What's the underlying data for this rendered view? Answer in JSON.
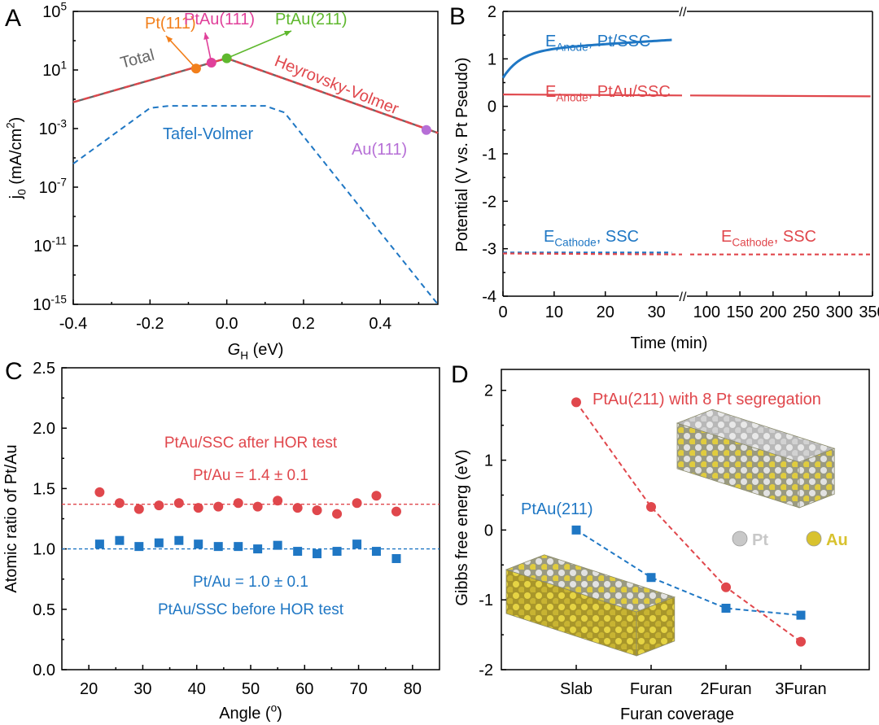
{
  "colors": {
    "blue": "#1f77c4",
    "red": "#e0474c",
    "gray": "#666666",
    "orange": "#f27f1b",
    "pink": "#e0409a",
    "green": "#5fb82e",
    "purple": "#b66fd6",
    "axis": "#000000"
  },
  "chart_data": [
    {
      "panel": "A",
      "type": "line",
      "panel_label": "A",
      "xlabel_main": "G",
      "xlabel_sub": "H",
      "xlabel_unit": " (eV)",
      "ylabel_main": "j",
      "ylabel_sub": "0",
      "ylabel_unit": " (mA/cm",
      "ylabel_sup": "2",
      "ylabel_tail": ")",
      "xlim": [
        -0.4,
        0.55
      ],
      "y_scale": "log",
      "ylim": [
        "1e-15",
        "1e5"
      ],
      "x_ticks": [
        "-0.4",
        "-0.2",
        "0.0",
        "0.2",
        "0.4"
      ],
      "y_ticks": [
        {
          "base": "10",
          "exp": "5"
        },
        {
          "base": "10",
          "exp": "1"
        },
        {
          "base": "10",
          "exp": "-3"
        },
        {
          "base": "10",
          "exp": "-7"
        },
        {
          "base": "10",
          "exp": "-11"
        },
        {
          "base": "10",
          "exp": "-15"
        }
      ],
      "series": [
        {
          "name": "Total",
          "points": [
            [
              -0.4,
              -1.2
            ],
            [
              0.0,
              1.8
            ],
            [
              0.55,
              -3.3
            ]
          ]
        },
        {
          "name": "Tafel-Volmer",
          "points": [
            [
              -0.4,
              -5.4
            ],
            [
              -0.2,
              -1.6
            ],
            [
              -0.15,
              -1.45
            ],
            [
              0.1,
              -1.45
            ],
            [
              0.15,
              -1.9
            ],
            [
              0.55,
              -15.0
            ]
          ]
        },
        {
          "name": "Heyrovsky-Volmer",
          "points": [
            [
              0.0,
              1.8
            ],
            [
              0.55,
              -3.3
            ]
          ]
        }
      ],
      "points": [
        {
          "name": "Pt(111)",
          "x": -0.08,
          "y": 1.1
        },
        {
          "name": "PtAu(111)",
          "x": -0.04,
          "y": 1.5
        },
        {
          "name": "PtAu(211)",
          "x": 0.0,
          "y": 1.8
        },
        {
          "name": "Au(111)",
          "x": 0.52,
          "y": -3.1
        }
      ]
    },
    {
      "panel": "B",
      "type": "line",
      "panel_label": "B",
      "xlabel": "Time (min)",
      "ylabel": "Potential (V vs. Pt Pseudo)",
      "x_ticks_left": [
        "0",
        "10",
        "20",
        "30"
      ],
      "x_ticks_right": [
        "100",
        "150",
        "200",
        "250",
        "300",
        "350"
      ],
      "x_break": "//",
      "ylim": [
        -4,
        2
      ],
      "y_ticks": [
        "2",
        "1",
        "0",
        "-1",
        "-2",
        "-3",
        "-4"
      ],
      "series": [
        {
          "name": "E_Anode, Pt/SSC",
          "label_main": "E",
          "label_sub": "Anode",
          "label_tail": ", Pt/SSC",
          "segments": "left",
          "y_start": 0.6,
          "y_end": 1.4
        },
        {
          "name": "E_Anode, PtAu/SSC",
          "label_main": "E",
          "label_sub": "Anode",
          "label_tail": ", PtAu/SSC",
          "segments": "both",
          "y": 0.25
        },
        {
          "name": "E_Cathode, SSC (blue)",
          "label_main": "E",
          "label_sub": "Cathode",
          "label_tail": ", SSC",
          "segments": "left",
          "y": -3.08
        },
        {
          "name": "E_Cathode, SSC (red)",
          "label_main": "E",
          "label_sub": "Cathode",
          "label_tail": ", SSC",
          "segments": "both",
          "y": -3.1
        }
      ]
    },
    {
      "panel": "C",
      "type": "scatter",
      "panel_label": "C",
      "xlabel_main": "Angle (",
      "xlabel_sup": "o",
      "xlabel_tail": ")",
      "ylabel": "Atomic ratio of Pt/Au",
      "xlim": [
        15,
        85
      ],
      "ylim": [
        0.0,
        2.5
      ],
      "x_ticks": [
        "20",
        "30",
        "40",
        "50",
        "60",
        "70",
        "80"
      ],
      "y_ticks": [
        "0.0",
        "0.5",
        "1.0",
        "1.5",
        "2.0",
        "2.5"
      ],
      "series": [
        {
          "name": "PtAu/SSC after HOR test",
          "mean_label": "Pt/Au = 1.4 ± 0.1",
          "mean": 1.37,
          "marker": "circle",
          "x": [
            22,
            25.7,
            29.3,
            33,
            36.7,
            40.3,
            44,
            47.7,
            51.3,
            55,
            58.7,
            62.3,
            66,
            69.7,
            73.3,
            77
          ],
          "y": [
            1.47,
            1.38,
            1.33,
            1.36,
            1.38,
            1.34,
            1.35,
            1.38,
            1.35,
            1.4,
            1.34,
            1.32,
            1.29,
            1.38,
            1.44,
            1.31
          ]
        },
        {
          "name": "PtAu/SSC before HOR test",
          "mean_label": "Pt/Au = 1.0 ± 0.1",
          "mean": 1.0,
          "marker": "square",
          "x": [
            22,
            25.7,
            29.3,
            33,
            36.7,
            40.3,
            44,
            47.7,
            51.3,
            55,
            58.7,
            62.3,
            66,
            69.7,
            73.3,
            77
          ],
          "y": [
            1.04,
            1.07,
            1.02,
            1.05,
            1.07,
            1.04,
            1.02,
            1.02,
            1.0,
            1.03,
            0.98,
            0.96,
            0.98,
            1.04,
            0.98,
            0.92
          ]
        }
      ]
    },
    {
      "panel": "D",
      "type": "line",
      "panel_label": "D",
      "xlabel": "Furan coverage",
      "ylabel": "Gibbs free energ (eV)",
      "categories": [
        "Slab",
        "Furan",
        "2Furan",
        "3Furan"
      ],
      "ylim": [
        -2,
        2.3
      ],
      "y_ticks": [
        "2",
        "1",
        "0",
        "-1",
        "-2"
      ],
      "series": [
        {
          "name": "PtAu(211) with 8 Pt segregation",
          "marker": "circle",
          "values": [
            1.83,
            0.33,
            -0.82,
            -1.6
          ]
        },
        {
          "name": "PtAu(211)",
          "marker": "square",
          "values": [
            0.0,
            -0.68,
            -1.12,
            -1.22
          ]
        }
      ],
      "legend": [
        {
          "name": "Pt",
          "color": "#c8c8c8"
        },
        {
          "name": "Au",
          "color": "#d8c22e"
        }
      ]
    }
  ]
}
